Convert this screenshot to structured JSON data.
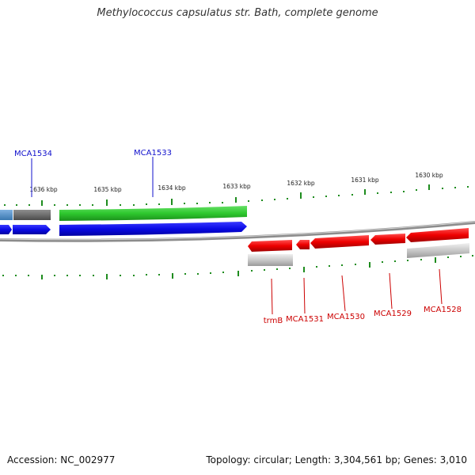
{
  "title": "Methylococcus capsulatus str. Bath, complete genome",
  "footer": {
    "accession": "Accession: NC_002977",
    "topology": "Topology: circular; Length: 3,304,561 bp; Genes: 3,010"
  },
  "colors": {
    "plus_strand": "#0a0ae6",
    "minus_strand": "#ee0000",
    "rna": "#33cc33",
    "pseudo": "#9a9a9a",
    "ruler": "#1e8c1e",
    "backbone": "#8c8c8c"
  },
  "ruler": {
    "labels": [
      "1636 kbp",
      "1635 kbp",
      "1634 kbp",
      "1633 kbp",
      "1632 kbp",
      "1631 kbp",
      "1630 kbp"
    ]
  },
  "genes": {
    "top": [
      "MCA1534",
      "MCA1533"
    ],
    "bottom": [
      "trmB",
      "MCA1531",
      "MCA1530",
      "MCA1529",
      "MCA1528"
    ]
  }
}
